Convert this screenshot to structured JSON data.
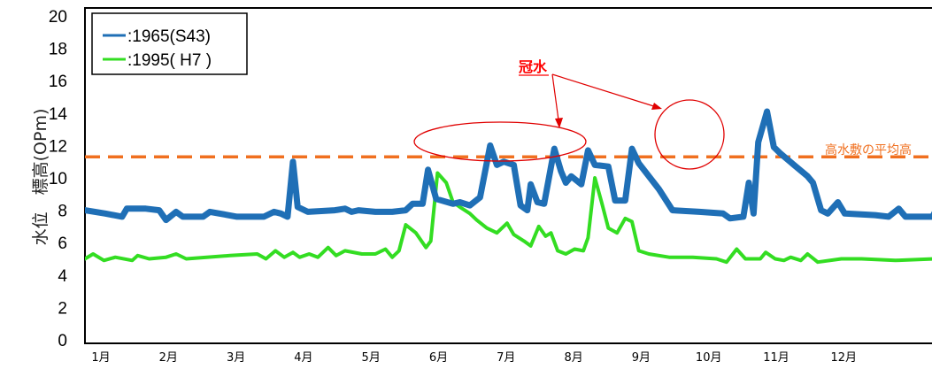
{
  "chart_data": {
    "type": "line",
    "ylabel": "水位　標高(OPm)",
    "ylim": [
      0,
      20
    ],
    "yticks": [
      "0",
      "2",
      "4",
      "6",
      "8",
      "10",
      "12",
      "14",
      "16",
      "18",
      "20"
    ],
    "categories": [
      "1月",
      "2月",
      "3月",
      "4月",
      "5月",
      "6月",
      "7月",
      "8月",
      "9月",
      "10月",
      "11月",
      "12月"
    ],
    "legend_placement": "top-left",
    "series": [
      {
        "name": ":1965(S43)",
        "color": "#1f6fb6",
        "points": [
          [
            0.0,
            8.0
          ],
          [
            0.3,
            7.8
          ],
          [
            0.55,
            7.6
          ],
          [
            0.62,
            8.1
          ],
          [
            0.9,
            8.1
          ],
          [
            1.1,
            8.0
          ],
          [
            1.2,
            7.4
          ],
          [
            1.35,
            7.9
          ],
          [
            1.45,
            7.6
          ],
          [
            1.75,
            7.6
          ],
          [
            1.85,
            7.9
          ],
          [
            2.25,
            7.6
          ],
          [
            2.65,
            7.6
          ],
          [
            2.8,
            7.9
          ],
          [
            2.9,
            7.8
          ],
          [
            3.0,
            7.6
          ],
          [
            3.08,
            11.0
          ],
          [
            3.15,
            8.2
          ],
          [
            3.3,
            7.9
          ],
          [
            3.7,
            8.0
          ],
          [
            3.85,
            8.1
          ],
          [
            3.95,
            7.9
          ],
          [
            4.05,
            8.0
          ],
          [
            4.3,
            7.9
          ],
          [
            4.55,
            7.9
          ],
          [
            4.75,
            8.0
          ],
          [
            4.85,
            8.4
          ],
          [
            5.0,
            8.4
          ],
          [
            5.08,
            10.5
          ],
          [
            5.2,
            8.7
          ],
          [
            5.45,
            8.4
          ],
          [
            5.55,
            8.5
          ],
          [
            5.7,
            8.3
          ],
          [
            5.85,
            8.8
          ],
          [
            6.0,
            12.0
          ],
          [
            6.1,
            10.8
          ],
          [
            6.2,
            11.0
          ],
          [
            6.35,
            10.8
          ],
          [
            6.45,
            8.3
          ],
          [
            6.55,
            8.0
          ],
          [
            6.6,
            9.6
          ],
          [
            6.7,
            8.5
          ],
          [
            6.8,
            8.4
          ],
          [
            6.95,
            11.8
          ],
          [
            7.05,
            10.4
          ],
          [
            7.12,
            9.7
          ],
          [
            7.2,
            10.1
          ],
          [
            7.35,
            9.6
          ],
          [
            7.45,
            11.7
          ],
          [
            7.55,
            10.8
          ],
          [
            7.75,
            10.7
          ],
          [
            7.85,
            8.6
          ],
          [
            8.0,
            8.6
          ],
          [
            8.1,
            11.8
          ],
          [
            8.2,
            10.9
          ],
          [
            8.5,
            9.3
          ],
          [
            8.7,
            8.0
          ],
          [
            9.1,
            7.9
          ],
          [
            9.45,
            7.8
          ],
          [
            9.55,
            7.5
          ],
          [
            9.75,
            7.6
          ],
          [
            9.83,
            9.7
          ],
          [
            9.9,
            7.8
          ],
          [
            9.97,
            12.2
          ],
          [
            10.1,
            14.1
          ],
          [
            10.2,
            11.9
          ],
          [
            10.3,
            11.5
          ],
          [
            10.5,
            10.8
          ],
          [
            10.7,
            10.1
          ],
          [
            10.78,
            9.7
          ],
          [
            10.9,
            8.0
          ],
          [
            11.0,
            7.8
          ],
          [
            11.15,
            8.5
          ],
          [
            11.25,
            7.8
          ],
          [
            11.7,
            7.7
          ],
          [
            11.9,
            7.6
          ],
          [
            12.05,
            8.1
          ],
          [
            12.15,
            7.6
          ],
          [
            12.55,
            7.6
          ],
          [
            12.65,
            8.4
          ],
          [
            12.75,
            7.9
          ],
          [
            13.2,
            7.7
          ],
          [
            13.45,
            8.3
          ]
        ]
      },
      {
        "name": ":1995( H7 )",
        "color": "#33dd22",
        "points": [
          [
            0.0,
            5.0
          ],
          [
            0.12,
            5.3
          ],
          [
            0.28,
            4.9
          ],
          [
            0.45,
            5.1
          ],
          [
            0.7,
            4.9
          ],
          [
            0.78,
            5.2
          ],
          [
            0.95,
            5.0
          ],
          [
            1.2,
            5.1
          ],
          [
            1.35,
            5.3
          ],
          [
            1.5,
            5.0
          ],
          [
            2.15,
            5.2
          ],
          [
            2.55,
            5.3
          ],
          [
            2.68,
            5.0
          ],
          [
            2.82,
            5.5
          ],
          [
            2.95,
            5.1
          ],
          [
            3.08,
            5.4
          ],
          [
            3.18,
            5.1
          ],
          [
            3.32,
            5.3
          ],
          [
            3.45,
            5.1
          ],
          [
            3.6,
            5.7
          ],
          [
            3.72,
            5.2
          ],
          [
            3.85,
            5.5
          ],
          [
            4.1,
            5.3
          ],
          [
            4.3,
            5.3
          ],
          [
            4.45,
            5.6
          ],
          [
            4.55,
            5.1
          ],
          [
            4.65,
            5.5
          ],
          [
            4.75,
            7.1
          ],
          [
            4.9,
            6.6
          ],
          [
            5.05,
            5.7
          ],
          [
            5.12,
            6.1
          ],
          [
            5.22,
            10.3
          ],
          [
            5.35,
            9.7
          ],
          [
            5.45,
            8.5
          ],
          [
            5.55,
            8.2
          ],
          [
            5.7,
            7.8
          ],
          [
            5.8,
            7.4
          ],
          [
            5.95,
            6.9
          ],
          [
            6.1,
            6.6
          ],
          [
            6.25,
            7.2
          ],
          [
            6.35,
            6.5
          ],
          [
            6.5,
            6.1
          ],
          [
            6.6,
            5.8
          ],
          [
            6.72,
            7.0
          ],
          [
            6.82,
            6.4
          ],
          [
            6.9,
            6.6
          ],
          [
            7.0,
            5.5
          ],
          [
            7.12,
            5.3
          ],
          [
            7.25,
            5.6
          ],
          [
            7.38,
            5.5
          ],
          [
            7.45,
            6.3
          ],
          [
            7.55,
            10.0
          ],
          [
            7.65,
            8.5
          ],
          [
            7.75,
            6.9
          ],
          [
            7.88,
            6.6
          ],
          [
            8.0,
            7.5
          ],
          [
            8.1,
            7.3
          ],
          [
            8.2,
            5.5
          ],
          [
            8.35,
            5.3
          ],
          [
            8.65,
            5.1
          ],
          [
            9.0,
            5.1
          ],
          [
            9.35,
            5.0
          ],
          [
            9.5,
            4.8
          ],
          [
            9.65,
            5.6
          ],
          [
            9.78,
            5.0
          ],
          [
            10.0,
            5.0
          ],
          [
            10.08,
            5.4
          ],
          [
            10.22,
            5.0
          ],
          [
            10.35,
            4.9
          ],
          [
            10.45,
            5.1
          ],
          [
            10.6,
            4.9
          ],
          [
            10.7,
            5.3
          ],
          [
            10.85,
            4.8
          ],
          [
            11.2,
            5.0
          ],
          [
            11.5,
            5.0
          ],
          [
            12.0,
            4.9
          ],
          [
            12.6,
            5.0
          ],
          [
            13.0,
            5.0
          ],
          [
            13.4,
            4.9
          ]
        ]
      }
    ],
    "reference_line": {
      "value": 11.3,
      "label": "高水敷の平均高",
      "color": "#f07020"
    },
    "annotations": [
      {
        "text": "冠水",
        "color": "#ff0000"
      }
    ]
  }
}
